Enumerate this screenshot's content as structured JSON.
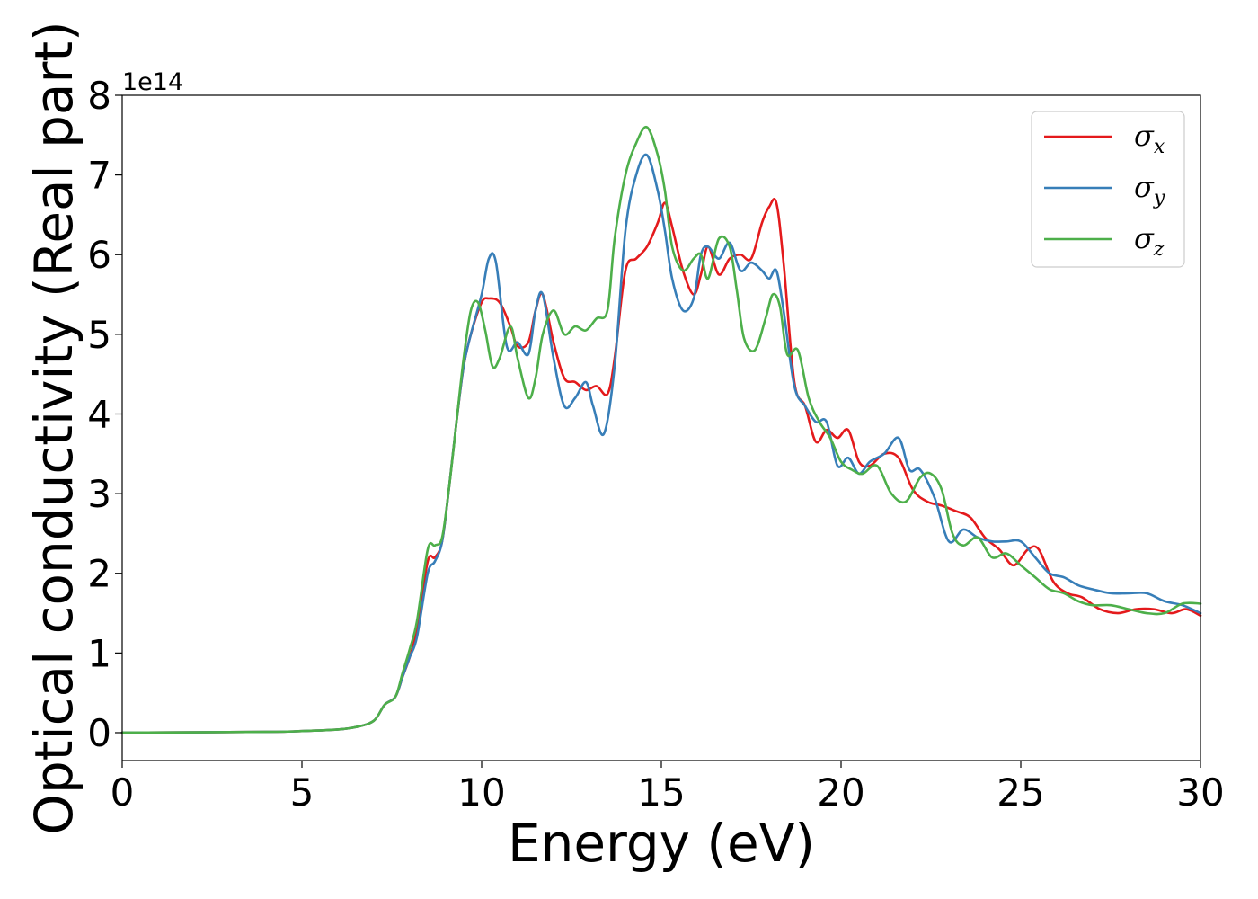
{
  "chart_data": {
    "type": "line",
    "xlabel": "Energy (eV)",
    "ylabel": "Optical conductivity (Real part)",
    "y_offset_label": "1e14",
    "xlim": [
      0,
      30
    ],
    "ylim": [
      -0.35,
      8.0
    ],
    "x_ticks": [
      0,
      5,
      10,
      15,
      20,
      25,
      30
    ],
    "x_tick_labels": [
      "0",
      "5",
      "10",
      "15",
      "20",
      "25",
      "30"
    ],
    "y_ticks": [
      0,
      1,
      2,
      3,
      4,
      5,
      6,
      7,
      8
    ],
    "y_tick_labels": [
      "0",
      "1",
      "2",
      "3",
      "4",
      "5",
      "6",
      "7",
      "8"
    ],
    "grid": false,
    "legend_position": "top-right",
    "series": [
      {
        "name": "σx",
        "legend_base": "σ",
        "legend_sub": "x",
        "color": "#e41a1c",
        "x": [
          0,
          4,
          5,
          6,
          6.5,
          7,
          7.3,
          7.6,
          7.8,
          8.0,
          8.2,
          8.5,
          8.7,
          8.9,
          9.1,
          9.3,
          9.5,
          9.7,
          10.0,
          10.2,
          10.5,
          10.8,
          11.0,
          11.3,
          11.5,
          11.7,
          12.0,
          12.3,
          12.6,
          12.9,
          13.2,
          13.5,
          13.7,
          14.0,
          14.3,
          14.6,
          14.9,
          15.1,
          15.3,
          15.6,
          15.9,
          16.1,
          16.3,
          16.6,
          16.9,
          17.2,
          17.5,
          17.8,
          18.0,
          18.2,
          18.4,
          18.7,
          19.0,
          19.3,
          19.6,
          19.9,
          20.2,
          20.5,
          20.8,
          21.2,
          21.6,
          22.0,
          22.4,
          22.8,
          23.2,
          23.6,
          24.0,
          24.4,
          24.8,
          25.2,
          25.5,
          25.9,
          26.3,
          26.7,
          27.2,
          27.7,
          28.2,
          28.7,
          29.2,
          29.6,
          30.0
        ],
        "y": [
          0,
          0.01,
          0.02,
          0.04,
          0.07,
          0.15,
          0.35,
          0.45,
          0.7,
          0.95,
          1.3,
          2.15,
          2.2,
          2.4,
          3.1,
          3.9,
          4.6,
          5.0,
          5.4,
          5.45,
          5.4,
          5.1,
          4.85,
          4.9,
          5.3,
          5.5,
          4.9,
          4.45,
          4.4,
          4.3,
          4.35,
          4.25,
          4.7,
          5.8,
          5.95,
          6.1,
          6.4,
          6.65,
          6.35,
          5.8,
          5.5,
          5.75,
          6.1,
          5.75,
          5.95,
          6.0,
          5.95,
          6.4,
          6.6,
          6.65,
          5.9,
          4.4,
          4.1,
          3.65,
          3.8,
          3.7,
          3.8,
          3.4,
          3.35,
          3.5,
          3.45,
          3.05,
          2.9,
          2.85,
          2.78,
          2.7,
          2.45,
          2.3,
          2.1,
          2.3,
          2.3,
          1.9,
          1.75,
          1.7,
          1.55,
          1.5,
          1.55,
          1.55,
          1.5,
          1.55,
          1.47
        ]
      },
      {
        "name": "σy",
        "legend_base": "σ",
        "legend_sub": "y",
        "color": "#377eb8",
        "x": [
          0,
          4,
          5,
          6,
          6.5,
          7,
          7.3,
          7.6,
          7.8,
          8.0,
          8.2,
          8.5,
          8.7,
          8.9,
          9.1,
          9.3,
          9.5,
          9.7,
          10.0,
          10.2,
          10.4,
          10.7,
          11.0,
          11.3,
          11.5,
          11.7,
          12.0,
          12.3,
          12.6,
          12.9,
          13.1,
          13.4,
          13.7,
          14.0,
          14.3,
          14.6,
          14.9,
          15.1,
          15.3,
          15.6,
          15.9,
          16.1,
          16.3,
          16.6,
          16.9,
          17.2,
          17.5,
          17.8,
          18.0,
          18.2,
          18.4,
          18.7,
          19.0,
          19.3,
          19.6,
          19.9,
          20.2,
          20.5,
          20.8,
          21.2,
          21.6,
          21.9,
          22.2,
          22.6,
          23.0,
          23.4,
          23.8,
          24.2,
          24.6,
          25.0,
          25.4,
          25.8,
          26.2,
          26.6,
          27.0,
          27.5,
          28.0,
          28.5,
          29.0,
          29.5,
          30.0
        ],
        "y": [
          0,
          0.01,
          0.02,
          0.04,
          0.07,
          0.15,
          0.35,
          0.45,
          0.7,
          0.95,
          1.2,
          2.0,
          2.15,
          2.4,
          3.1,
          3.9,
          4.6,
          5.0,
          5.5,
          5.95,
          5.9,
          4.85,
          4.9,
          4.75,
          5.3,
          5.5,
          4.7,
          4.1,
          4.2,
          4.4,
          4.1,
          3.75,
          4.6,
          6.3,
          7.0,
          7.25,
          6.8,
          6.3,
          5.7,
          5.3,
          5.45,
          6.0,
          6.1,
          5.95,
          6.15,
          5.8,
          5.9,
          5.8,
          5.7,
          5.8,
          5.3,
          4.35,
          4.1,
          3.9,
          3.9,
          3.35,
          3.45,
          3.25,
          3.4,
          3.5,
          3.7,
          3.3,
          3.3,
          2.95,
          2.4,
          2.55,
          2.45,
          2.4,
          2.4,
          2.4,
          2.2,
          2.0,
          1.95,
          1.85,
          1.8,
          1.75,
          1.75,
          1.75,
          1.65,
          1.6,
          1.5
        ]
      },
      {
        "name": "σz",
        "legend_base": "σ",
        "legend_sub": "z",
        "color": "#4daf4a",
        "x": [
          0,
          4,
          5,
          6,
          6.5,
          7,
          7.3,
          7.6,
          7.8,
          8.0,
          8.2,
          8.5,
          8.7,
          8.9,
          9.1,
          9.3,
          9.5,
          9.7,
          9.9,
          10.1,
          10.3,
          10.5,
          10.8,
          11.0,
          11.3,
          11.5,
          11.7,
          12.0,
          12.3,
          12.6,
          12.9,
          13.2,
          13.5,
          13.7,
          14.0,
          14.3,
          14.6,
          14.9,
          15.1,
          15.3,
          15.6,
          15.9,
          16.1,
          16.3,
          16.6,
          16.9,
          17.1,
          17.3,
          17.6,
          17.9,
          18.1,
          18.3,
          18.5,
          18.8,
          19.1,
          19.4,
          19.7,
          20.0,
          20.3,
          20.6,
          21.0,
          21.4,
          21.8,
          22.2,
          22.5,
          22.8,
          23.1,
          23.4,
          23.8,
          24.2,
          24.6,
          25.0,
          25.4,
          25.8,
          26.2,
          26.6,
          27.0,
          27.5,
          28.0,
          28.5,
          29.0,
          29.5,
          30.0
        ],
        "y": [
          0,
          0.01,
          0.02,
          0.04,
          0.07,
          0.15,
          0.35,
          0.45,
          0.75,
          1.05,
          1.4,
          2.3,
          2.35,
          2.45,
          3.1,
          3.9,
          4.7,
          5.3,
          5.4,
          5.05,
          4.6,
          4.7,
          5.1,
          4.7,
          4.2,
          4.45,
          5.0,
          5.3,
          5.0,
          5.1,
          5.05,
          5.2,
          5.3,
          6.2,
          7.0,
          7.4,
          7.6,
          7.25,
          6.8,
          6.1,
          5.8,
          5.95,
          6.0,
          5.7,
          6.2,
          6.1,
          5.55,
          4.95,
          4.8,
          5.2,
          5.5,
          5.35,
          4.75,
          4.8,
          4.2,
          3.9,
          3.7,
          3.4,
          3.3,
          3.25,
          3.35,
          3.0,
          2.9,
          3.2,
          3.25,
          3.05,
          2.5,
          2.35,
          2.45,
          2.2,
          2.25,
          2.1,
          1.95,
          1.8,
          1.75,
          1.65,
          1.6,
          1.6,
          1.55,
          1.5,
          1.5,
          1.62,
          1.62
        ]
      }
    ]
  }
}
